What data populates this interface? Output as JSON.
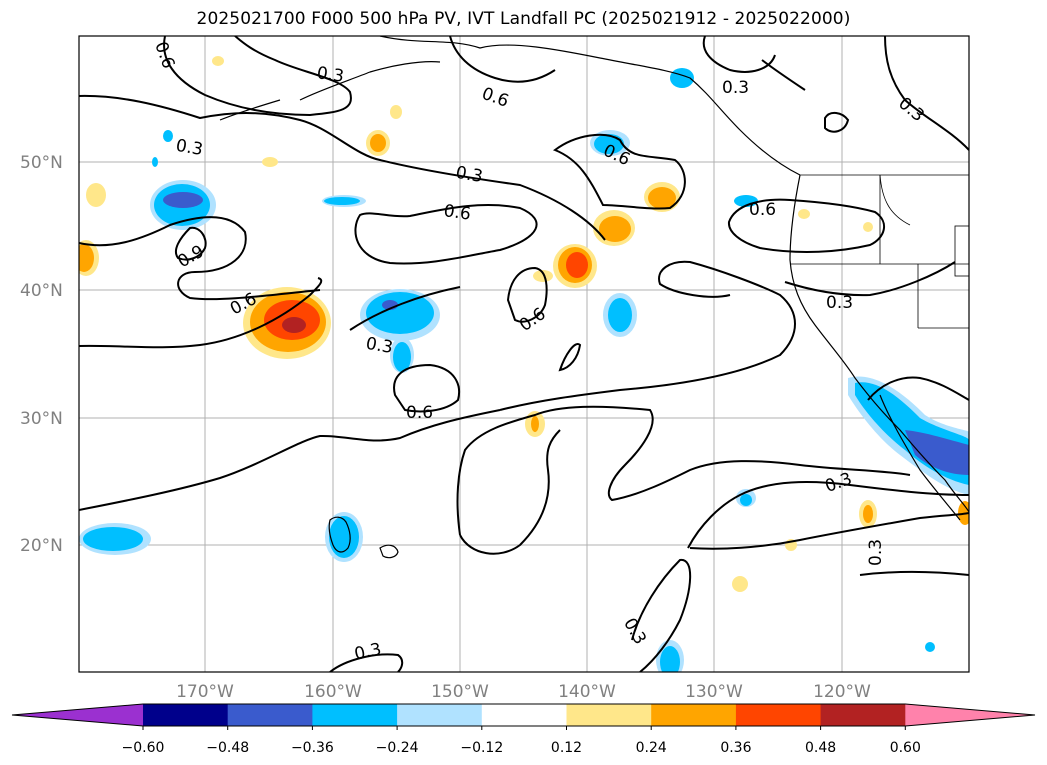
{
  "title": "2025021700 F000 500 hPa PV, IVT Landfall PC (2025021912 - 2025022000)",
  "lat_labels": [
    "50°N",
    "40°N",
    "30°N",
    "20°N"
  ],
  "lon_labels": [
    "170°W",
    "160°W",
    "150°W",
    "140°W",
    "130°W",
    "120°W"
  ],
  "contour_labels": [
    "0.3",
    "0.6",
    "0.6",
    "0.3",
    "0.3",
    "0.3",
    "0.6",
    "0.6",
    "0.6",
    "0.3",
    "0.9",
    "0.6",
    "0.6",
    "0.3",
    "0.6",
    "0.3",
    "0.3",
    "0.3",
    "0.3",
    "0.3"
  ],
  "colorbar": {
    "ticks": [
      "−0.60",
      "−0.48",
      "−0.36",
      "−0.24",
      "−0.12",
      "0.12",
      "0.24",
      "0.36",
      "0.48",
      "0.60"
    ],
    "colors": [
      "#9b30d0",
      "#00008b",
      "#3a5bcd",
      "#00bfff",
      "#b0e2ff",
      "#ffffff",
      "#ffe78a",
      "#ffa500",
      "#ff4500",
      "#b22222",
      "#ff82ab"
    ]
  }
}
